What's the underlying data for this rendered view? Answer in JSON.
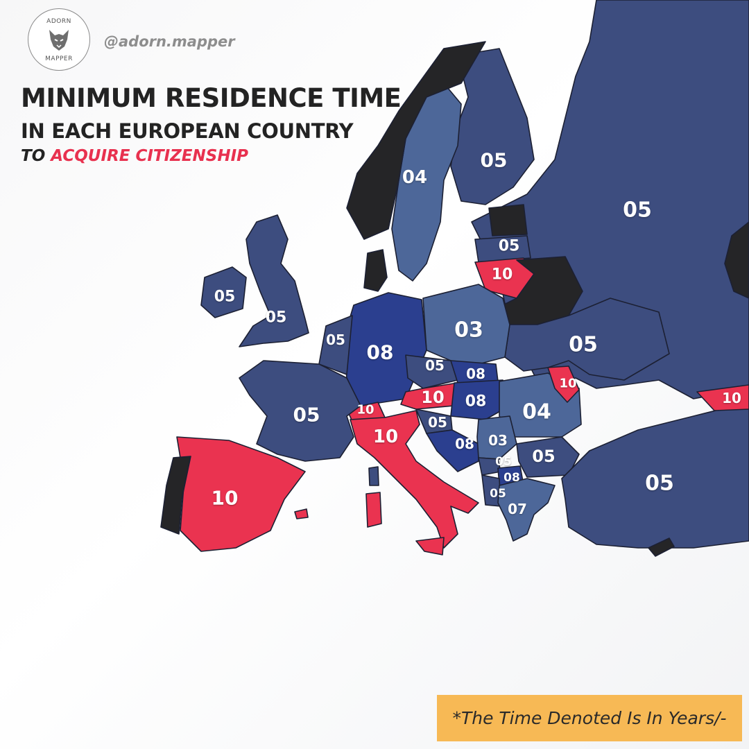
{
  "brand": {
    "logo_top": "ADORN",
    "logo_bottom": "MAPPER",
    "logo_icon": "wolf-icon",
    "handle": "@adorn.mapper"
  },
  "title": {
    "line1": "MINIMUM RESIDENCE TIME",
    "line2": "IN EACH EUROPEAN COUNTRY",
    "line3_prefix": "TO ",
    "line3_highlight": "ACQUIRE CITIZENSHIP"
  },
  "note": "*The Time Denoted Is In Years/-",
  "colors": {
    "default_country": "#3d4d7f",
    "light_blue": "#4d6799",
    "dark_blue": "#2b3f8f",
    "red": "#ea3350",
    "no_data": "#252527",
    "highlight": "#e8314f",
    "note_bg": "#f7b955"
  },
  "chart_data": {
    "type": "map",
    "unit": "years",
    "regions": [
      {
        "region": "Ireland",
        "value": "05"
      },
      {
        "region": "United Kingdom",
        "value": "05"
      },
      {
        "region": "France",
        "value": "05"
      },
      {
        "region": "Spain",
        "value": "10"
      },
      {
        "region": "Portugal",
        "value": null
      },
      {
        "region": "Benelux",
        "value": "05"
      },
      {
        "region": "Germany",
        "value": "08"
      },
      {
        "region": "Switzerland",
        "value": "10"
      },
      {
        "region": "Italy",
        "value": "10"
      },
      {
        "region": "Austria",
        "value": "10"
      },
      {
        "region": "Czechia",
        "value": "05"
      },
      {
        "region": "Poland",
        "value": "03"
      },
      {
        "region": "Slovakia",
        "value": "08"
      },
      {
        "region": "Hungary",
        "value": "08"
      },
      {
        "region": "Slovenia",
        "value": "05"
      },
      {
        "region": "Croatia/Bosnia",
        "value": "08"
      },
      {
        "region": "Serbia",
        "value": "03"
      },
      {
        "region": "Montenegro",
        "value": "05"
      },
      {
        "region": "Kosovo/N. Macedonia",
        "value": "08"
      },
      {
        "region": "Albania",
        "value": "05"
      },
      {
        "region": "Greece",
        "value": "07"
      },
      {
        "region": "Bulgaria",
        "value": "05"
      },
      {
        "region": "Romania",
        "value": "04"
      },
      {
        "region": "Moldova",
        "value": "10"
      },
      {
        "region": "Ukraine",
        "value": "05"
      },
      {
        "region": "Turkey",
        "value": "05"
      },
      {
        "region": "Georgia",
        "value": "10"
      },
      {
        "region": "Russia",
        "value": "05"
      },
      {
        "region": "Sweden",
        "value": "04"
      },
      {
        "region": "Finland",
        "value": "05"
      },
      {
        "region": "Latvia",
        "value": "05"
      },
      {
        "region": "Lithuania",
        "value": "10"
      },
      {
        "region": "Norway",
        "value": null
      },
      {
        "region": "Denmark",
        "value": null
      },
      {
        "region": "Estonia",
        "value": null
      },
      {
        "region": "Belarus",
        "value": null
      }
    ]
  }
}
